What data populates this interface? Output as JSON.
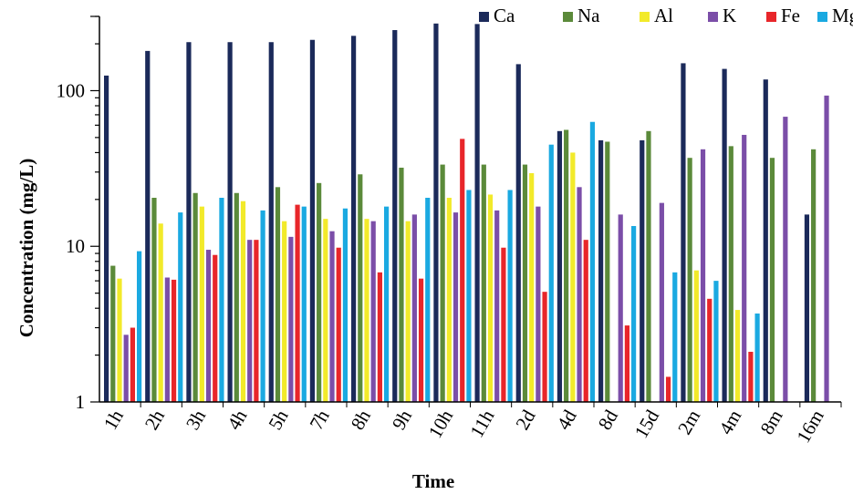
{
  "chart_data": {
    "type": "bar",
    "xlabel": "Time",
    "ylabel": "Concentration (mg/L)",
    "yscale": "log",
    "ylim": [
      1,
      300
    ],
    "yticks": [
      "1",
      "10",
      "100"
    ],
    "legend": "top-right",
    "categories": [
      "1h",
      "2h",
      "3h",
      "4h",
      "5h",
      "7h",
      "8h",
      "9h",
      "10h",
      "11h",
      "2d",
      "4d",
      "8d",
      "15d",
      "2m",
      "4m",
      "8m",
      "16m"
    ],
    "series": [
      {
        "name": "Ca",
        "color": "#1b2a5a",
        "values": [
          125,
          180,
          205,
          205,
          205,
          212,
          225,
          245,
          270,
          268,
          148,
          55,
          48,
          48,
          150,
          138,
          118,
          16
        ]
      },
      {
        "name": "Na",
        "color": "#5b8a3a",
        "values": [
          7.5,
          20.5,
          22,
          22,
          24,
          25.5,
          29,
          32,
          33.5,
          33.5,
          33.5,
          56,
          47,
          55,
          37,
          44,
          37,
          42
        ]
      },
      {
        "name": "Al",
        "color": "#f2ea2a",
        "values": [
          6.2,
          14,
          18,
          19.5,
          14.5,
          15,
          15,
          14.5,
          20.5,
          21.5,
          29.5,
          40,
          null,
          null,
          7,
          3.9,
          null,
          null
        ]
      },
      {
        "name": "K",
        "color": "#7b4ea8",
        "values": [
          2.7,
          6.3,
          9.5,
          11,
          11.5,
          12.5,
          14.5,
          16,
          16.5,
          17,
          18,
          24,
          16,
          19,
          42,
          52,
          68,
          93
        ]
      },
      {
        "name": "Fe",
        "color": "#e8262a",
        "values": [
          3.0,
          6.1,
          8.8,
          11,
          18.5,
          9.8,
          6.8,
          6.2,
          49,
          9.8,
          5.1,
          11,
          3.1,
          1.45,
          4.6,
          2.1,
          null,
          null
        ]
      },
      {
        "name": "Mg",
        "color": "#1aa9e1",
        "values": [
          9.3,
          16.5,
          20.5,
          17,
          18,
          17.5,
          18,
          20.5,
          23,
          23,
          45,
          63,
          13.5,
          6.8,
          6.0,
          3.7,
          null,
          null
        ]
      }
    ]
  }
}
